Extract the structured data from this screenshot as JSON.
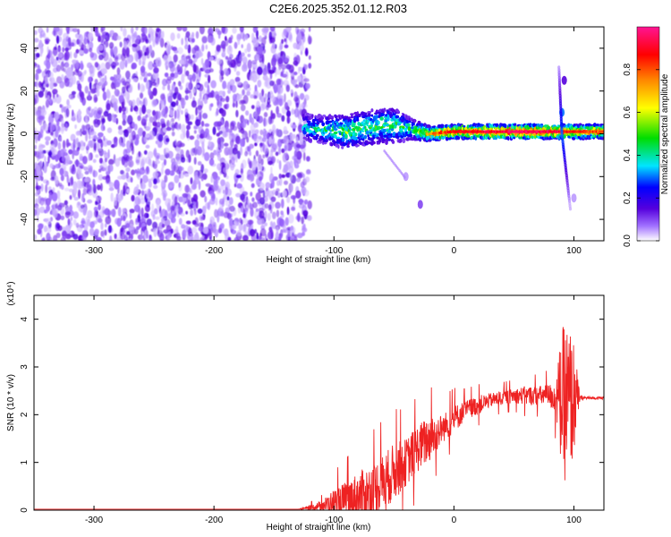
{
  "figure": {
    "title": "C2E6.2025.352.01.12.R03"
  },
  "chart_data": [
    {
      "type": "heatmap",
      "title": "C2E6.2025.352.01.12.R03",
      "xlabel": "Height of straight line (km)",
      "ylabel": "Frequency (Hz)",
      "xlim": [
        -350,
        125
      ],
      "ylim": [
        -50,
        50
      ],
      "xticks": [
        -300,
        -200,
        -100,
        0,
        100
      ],
      "xtick_labels": [
        "-300",
        "-200",
        "-100",
        "0",
        "100"
      ],
      "yticks": [
        -40,
        -20,
        0,
        20,
        40
      ],
      "ytick_labels": [
        "-40",
        "-20",
        "0",
        "20",
        "40"
      ],
      "noise_region_x": [
        -350,
        -120
      ],
      "signal_band": [
        {
          "x": -125,
          "freq": 3,
          "halfwidth": 4,
          "amp": 0.35
        },
        {
          "x": -110,
          "freq": 2,
          "halfwidth": 4,
          "amp": 0.4
        },
        {
          "x": -90,
          "freq": 1,
          "halfwidth": 5,
          "amp": 0.45
        },
        {
          "x": -70,
          "freq": 3,
          "halfwidth": 5,
          "amp": 0.45
        },
        {
          "x": -50,
          "freq": 4,
          "halfwidth": 5,
          "amp": 0.45
        },
        {
          "x": -35,
          "freq": 2,
          "halfwidth": 3,
          "amp": 0.4
        },
        {
          "x": -20,
          "freq": 0,
          "halfwidth": 2,
          "amp": 0.7
        },
        {
          "x": 0,
          "freq": 1,
          "halfwidth": 2,
          "amp": 0.8
        },
        {
          "x": 30,
          "freq": 1,
          "halfwidth": 2,
          "amp": 0.85
        },
        {
          "x": 60,
          "freq": 1,
          "halfwidth": 2,
          "amp": 0.9
        },
        {
          "x": 85,
          "freq": 1,
          "halfwidth": 2,
          "amp": 0.85
        },
        {
          "x": 95,
          "freq": 1,
          "halfwidth": 2,
          "amp": 0.8
        },
        {
          "x": 110,
          "freq": 1,
          "halfwidth": 2,
          "amp": 0.75
        },
        {
          "x": 125,
          "freq": 1,
          "halfwidth": 2,
          "amp": 0.75
        }
      ],
      "features": [
        {
          "x": 90,
          "freq": 10,
          "amp": 0.3
        },
        {
          "x": 92,
          "freq": 25,
          "amp": 0.15
        },
        {
          "x": -28,
          "freq": -33,
          "amp": 0.1
        },
        {
          "x": -40,
          "freq": -20,
          "amp": 0.05
        },
        {
          "x": 100,
          "freq": -30,
          "amp": 0.05
        }
      ],
      "colorbar": {
        "label": "Normalized spectral amplitude",
        "range": [
          0,
          1
        ],
        "ticks": [
          0.0,
          0.2,
          0.4,
          0.6,
          0.8
        ],
        "tick_labels": [
          "0.0",
          "0.2",
          "0.4",
          "0.6",
          "0.8"
        ],
        "stops": [
          "#ffffff",
          "#a070ff",
          "#5500dd",
          "#0000ff",
          "#00e5ff",
          "#00dd00",
          "#ffff00",
          "#ff8800",
          "#ff0000",
          "#ff1493"
        ]
      }
    },
    {
      "type": "line",
      "xlabel": "Height of straight line (km)",
      "ylabel": "SNR (10 * v/v)",
      "scale_label": "(x10⁴)",
      "xlim": [
        -350,
        125
      ],
      "ylim": [
        0,
        4.5
      ],
      "xticks": [
        -300,
        -200,
        -100,
        0,
        100
      ],
      "xtick_labels": [
        "-300",
        "-200",
        "-100",
        "0",
        "100"
      ],
      "yticks": [
        0,
        1,
        2,
        3,
        4
      ],
      "ytick_labels": [
        "0",
        "1",
        "2",
        "3",
        "4"
      ],
      "series": [
        {
          "name": "SNR",
          "color": "#ee2222",
          "envelope": {
            "x": [
              -350,
              -130,
              -120,
              -110,
              -100,
              -90,
              -80,
              -70,
              -60,
              -50,
              -40,
              -30,
              -20,
              -15,
              -10,
              0,
              10,
              20,
              30,
              40,
              50,
              60,
              70,
              80,
              85,
              90,
              95,
              100,
              105,
              110,
              125
            ],
            "base": [
              0.02,
              0.02,
              0.05,
              0.1,
              0.15,
              0.2,
              0.3,
              0.4,
              0.55,
              0.8,
              1.0,
              1.3,
              1.5,
              1.6,
              1.7,
              1.9,
              2.1,
              2.2,
              2.3,
              2.35,
              2.4,
              2.4,
              2.4,
              2.4,
              2.35,
              2.3,
              2.2,
              2.35,
              2.35,
              2.35,
              2.35
            ],
            "spread": [
              0.0,
              0.0,
              0.05,
              0.1,
              0.3,
              0.4,
              0.5,
              0.55,
              0.6,
              0.6,
              0.5,
              0.5,
              0.5,
              0.4,
              0.3,
              0.3,
              0.2,
              0.2,
              0.15,
              0.15,
              0.15,
              0.2,
              0.2,
              0.25,
              0.4,
              1.5,
              1.8,
              1.2,
              0.05,
              0.03,
              0.03
            ]
          }
        }
      ]
    }
  ]
}
